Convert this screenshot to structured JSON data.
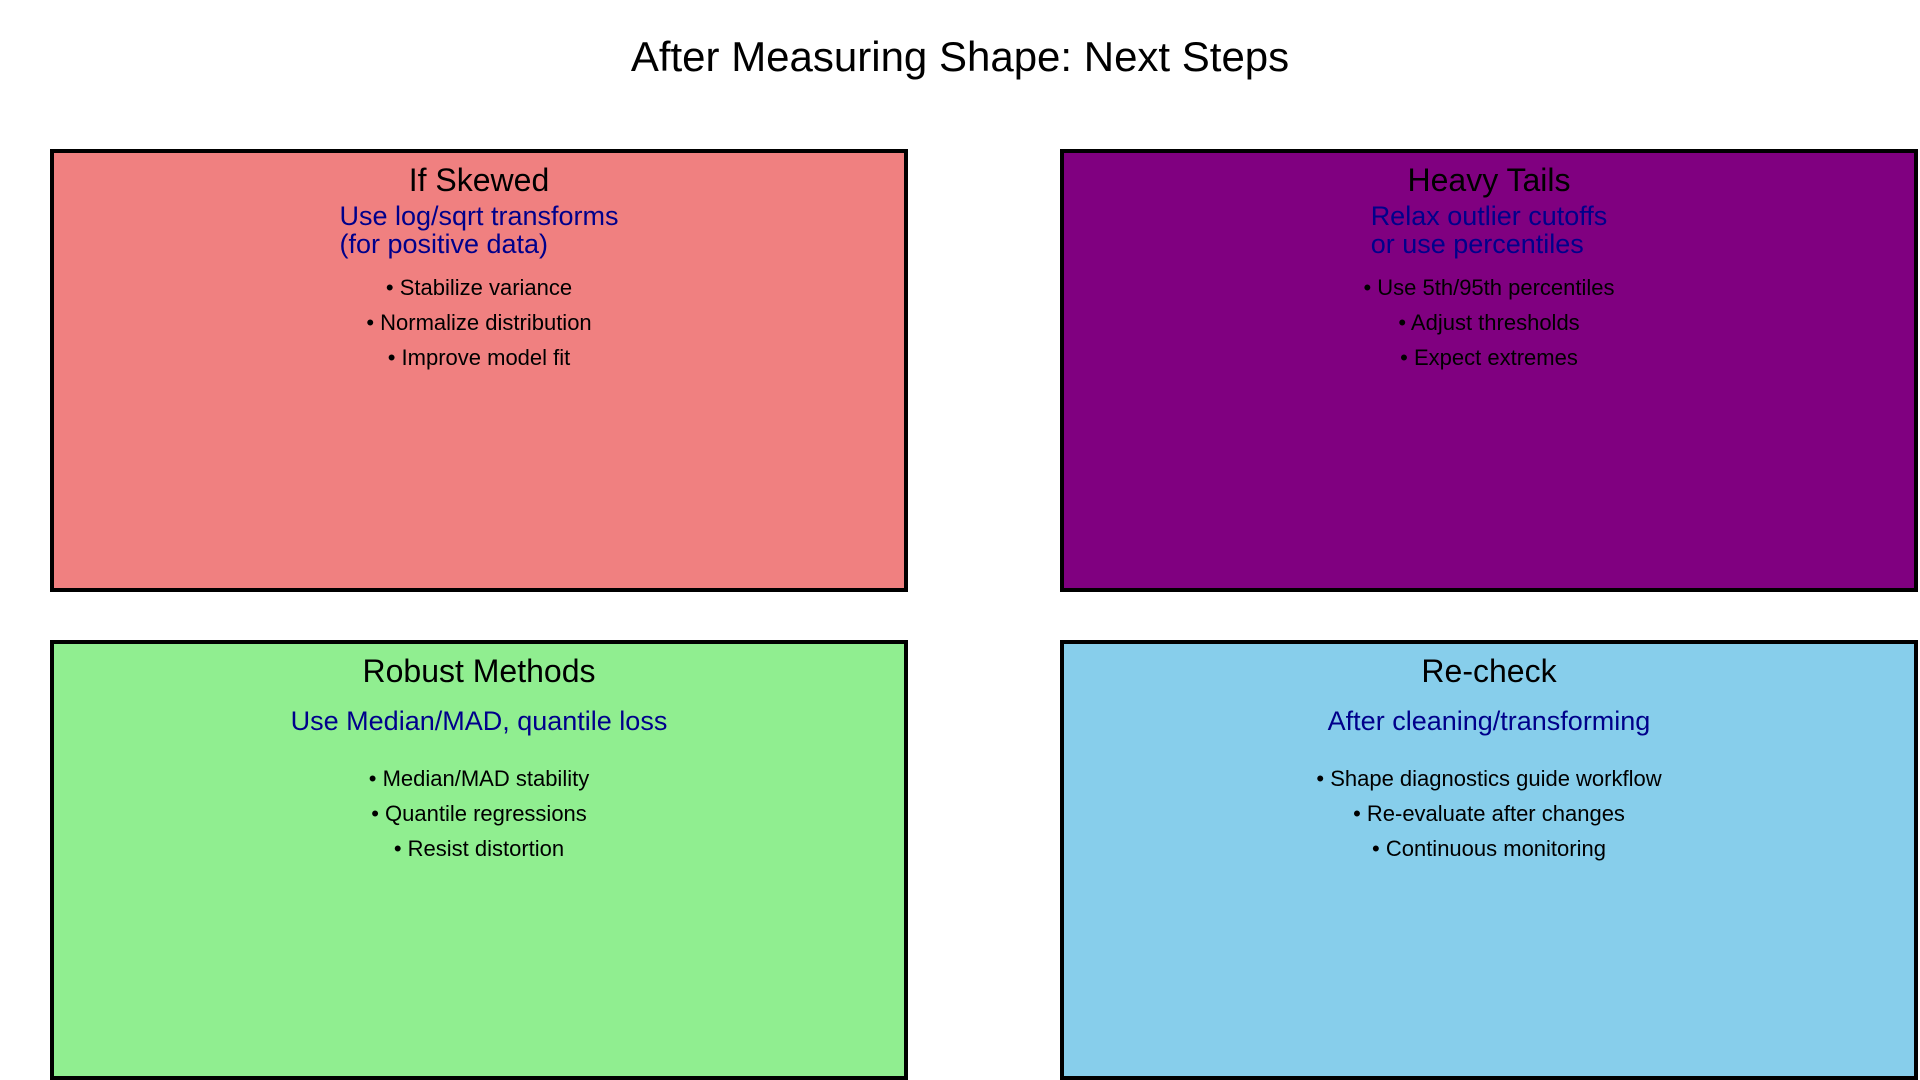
{
  "figure": {
    "title": "After Measuring Shape: Next Steps"
  },
  "colors": {
    "background": "#FFFFFF",
    "border": "#000000",
    "heading_text": "#000000",
    "body_text": "#000000",
    "accent_text": "#00008B",
    "quadrant_if_skewed_bg": "#F08080",
    "quadrant_heavy_tails_bg": "#800080",
    "quadrant_robust_methods_bg": "#90EE90",
    "quadrant_recheck_bg": "#87CEEB"
  },
  "boxes": [
    {
      "id": "if-skewed",
      "title": "If Skewed",
      "subtitle": "Use log/sqrt transforms\n(for positive data)",
      "bullets": [
        "• Stabilize variance",
        "• Normalize distribution",
        "• Improve model fit"
      ],
      "bg": "#F08080"
    },
    {
      "id": "heavy-tails",
      "title": "Heavy Tails",
      "subtitle": "Relax outlier cutoffs\nor use percentiles",
      "bullets": [
        "• Use 5th/95th percentiles",
        "• Adjust thresholds",
        "• Expect extremes"
      ],
      "bg": "#800080"
    },
    {
      "id": "robust-methods",
      "title": "Robust Methods",
      "subtitle": "Use Median/MAD, quantile loss",
      "bullets": [
        "• Median/MAD stability",
        "• Quantile regressions",
        "• Resist distortion"
      ],
      "bg": "#90EE90"
    },
    {
      "id": "re-check",
      "title": "Re-check",
      "subtitle": "After cleaning/transforming",
      "bullets": [
        "• Shape diagnostics guide workflow",
        "• Re-evaluate after changes",
        "• Continuous monitoring"
      ],
      "bg": "#87CEEB"
    }
  ]
}
